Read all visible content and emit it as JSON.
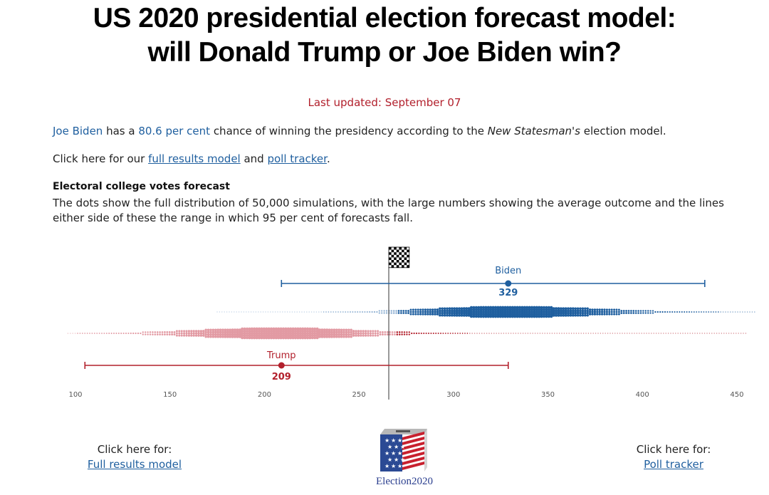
{
  "title_line1": "US 2020 presidential election forecast model:",
  "title_line2": "will Donald Trump or Joe Biden win?",
  "last_updated": "Last updated: September 07",
  "intro": {
    "name": "Joe Biden",
    "t1": " has a ",
    "pct": "80.6 per cent",
    "t2": " chance of winning the presidency according to the ",
    "publication": "New Statesman's",
    "t3": " election model."
  },
  "links_line": {
    "t1": "Click here for our ",
    "full_results": "full results model",
    "t2": " and ",
    "poll_tracker": "poll tracker",
    "t3": "."
  },
  "section_heading": "Electoral college votes forecast",
  "section_desc": "The dots show the full distribution of 50,000 simulations, with the large numbers showing the average outcome and the lines either side of these the range in which 95 per cent of forecasts fall.",
  "chart_data": {
    "type": "scatter",
    "title": "Electoral college votes forecast",
    "x_ticks": [
      "100",
      "150",
      "200",
      "250",
      "300",
      "350",
      "400",
      "450"
    ],
    "xlim": [
      100,
      460
    ],
    "threshold": 270,
    "series": [
      {
        "name": "Biden",
        "color": "#1f5f9f",
        "mean": 329,
        "range_95": [
          209,
          433
        ],
        "display_mean": "329"
      },
      {
        "name": "Trump",
        "color": "#b2202c",
        "mean": 209,
        "range_95": [
          105,
          329
        ],
        "display_mean": "209"
      }
    ],
    "grid": false
  },
  "bottom_left": {
    "label": "Click here for:",
    "link": "Full results model"
  },
  "bottom_right": {
    "label": "Click here for:",
    "link": "Poll tracker"
  },
  "logo_text": "Election2020"
}
